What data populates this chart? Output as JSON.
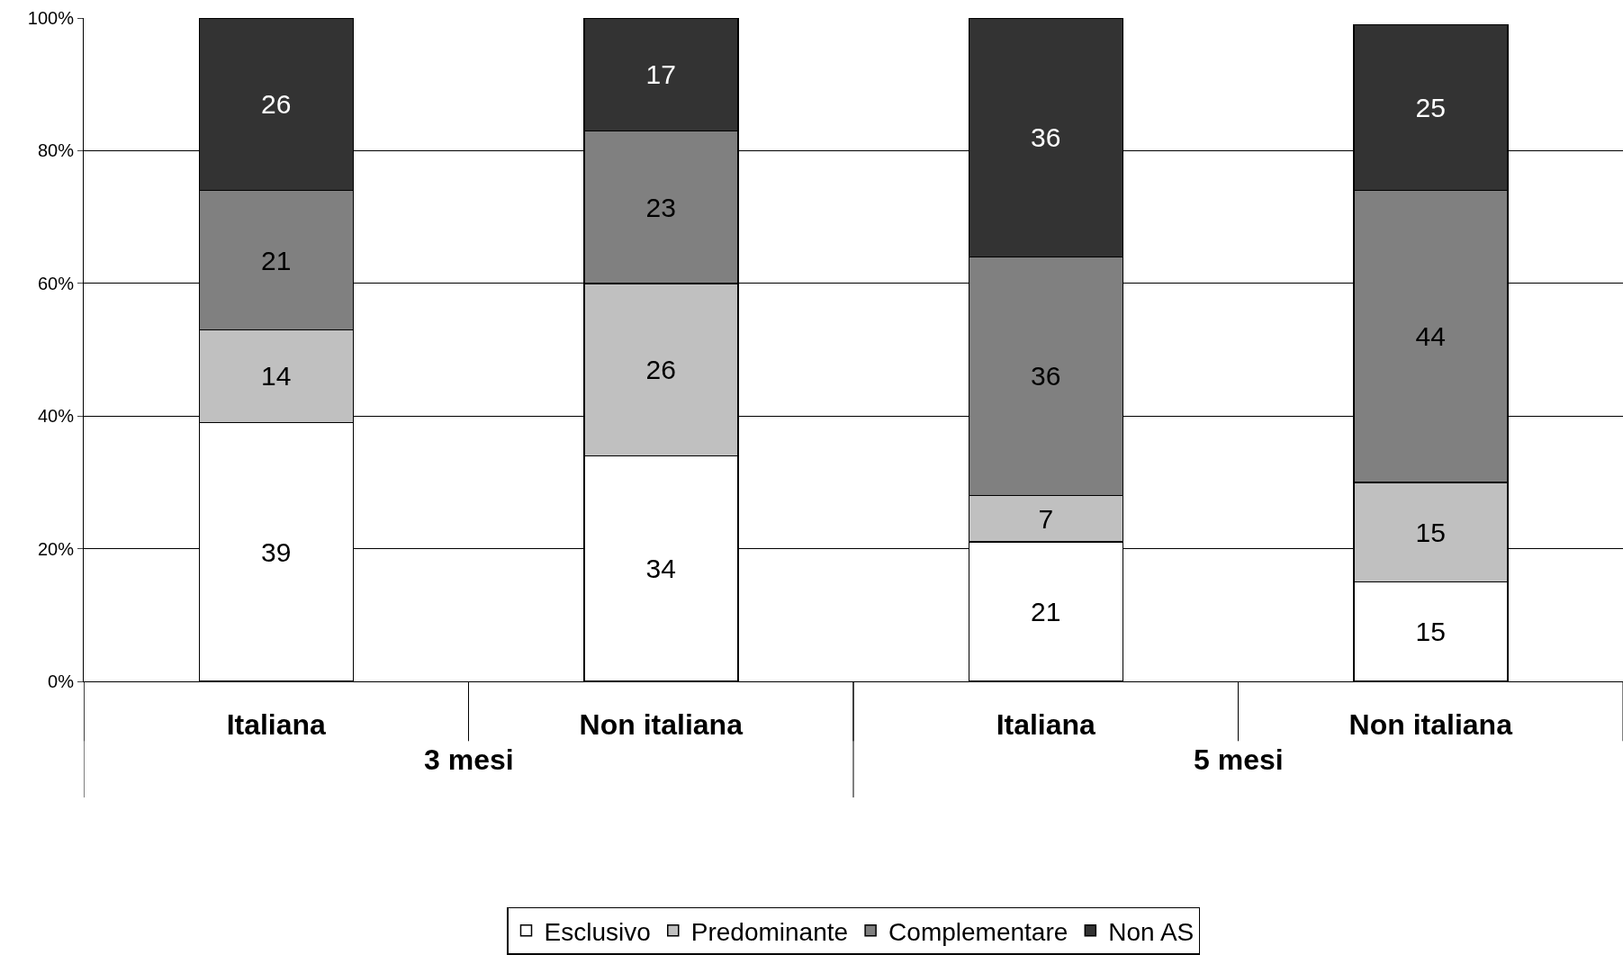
{
  "chart_data": {
    "type": "bar",
    "stacked": true,
    "data_labels": true,
    "grid": "y",
    "legend": "bottom",
    "categories": [
      "Italiana",
      "Non italiana",
      "Italiana",
      "Non italiana"
    ],
    "series": [
      {
        "name": "Esclusivo",
        "color": "#ffffff",
        "values": [
          39,
          34,
          21,
          15
        ]
      },
      {
        "name": "Predominante",
        "color": "#c0c0c0",
        "values": [
          14,
          26,
          7,
          15
        ]
      },
      {
        "name": "Complementare",
        "color": "#808080",
        "values": [
          21,
          23,
          36,
          44
        ]
      },
      {
        "name": "Non AS",
        "color": "#333333",
        "values": [
          26,
          17,
          36,
          25
        ]
      }
    ],
    "ylim": [
      0,
      100
    ],
    "yticks": [
      {
        "value": 0,
        "label": "0%"
      },
      {
        "value": 20,
        "label": "20%"
      },
      {
        "value": 40,
        "label": "40%"
      },
      {
        "value": 60,
        "label": "60%"
      },
      {
        "value": 80,
        "label": "80%"
      },
      {
        "value": 100,
        "label": "100%"
      }
    ],
    "annotations": [
      "3 mesi",
      "5 mesi"
    ]
  }
}
